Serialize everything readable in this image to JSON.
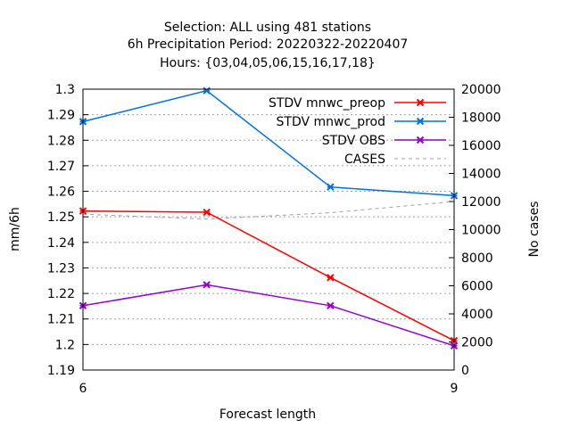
{
  "chart_data": {
    "type": "line",
    "title_lines": [
      "Selection: ALL using   481 stations",
      "6h Precipitation    Period: 20220322-20220407",
      "Hours: {03,04,05,06,15,16,17,18}"
    ],
    "xlabel": "Forecast length",
    "ylabel": "mm/6h",
    "y2label": "No cases",
    "x_ticks": [
      "6",
      "9"
    ],
    "xlim": [
      6,
      9
    ],
    "ylim": [
      1.19,
      1.3
    ],
    "y_ticks": [
      "1.19",
      "1.2",
      "1.21",
      "1.22",
      "1.23",
      "1.24",
      "1.25",
      "1.26",
      "1.27",
      "1.28",
      "1.29",
      "1.3"
    ],
    "y2lim": [
      0,
      20000
    ],
    "y2_ticks": [
      "0",
      "2000",
      "4000",
      "6000",
      "8000",
      "10000",
      "12000",
      "14000",
      "16000",
      "18000",
      "20000"
    ],
    "grid": true,
    "legend_position": "top-right",
    "series": [
      {
        "name": "STDV mnwc_preop",
        "color": "#ff0000",
        "axis": "left",
        "style": "solid-marker",
        "x": [
          6,
          7,
          8,
          9
        ],
        "values": [
          1.2523,
          1.2518,
          1.2262,
          1.2015
        ]
      },
      {
        "name": "STDV mnwc_prod",
        "color": "#0070e0",
        "axis": "left",
        "style": "solid-marker",
        "x": [
          6,
          7,
          8,
          9
        ],
        "values": [
          1.2873,
          1.2994,
          1.2617,
          1.2583
        ]
      },
      {
        "name": "STDV OBS",
        "color": "#9400d3",
        "axis": "left",
        "style": "solid-marker",
        "x": [
          6,
          7,
          8,
          9
        ],
        "values": [
          1.2152,
          1.2234,
          1.2152,
          1.1995
        ]
      },
      {
        "name": "CASES",
        "color": "#a0a0a0",
        "axis": "right",
        "style": "dashed",
        "x": [
          6,
          7,
          8,
          9
        ],
        "values": [
          11100,
          10750,
          11200,
          12000
        ]
      }
    ]
  }
}
